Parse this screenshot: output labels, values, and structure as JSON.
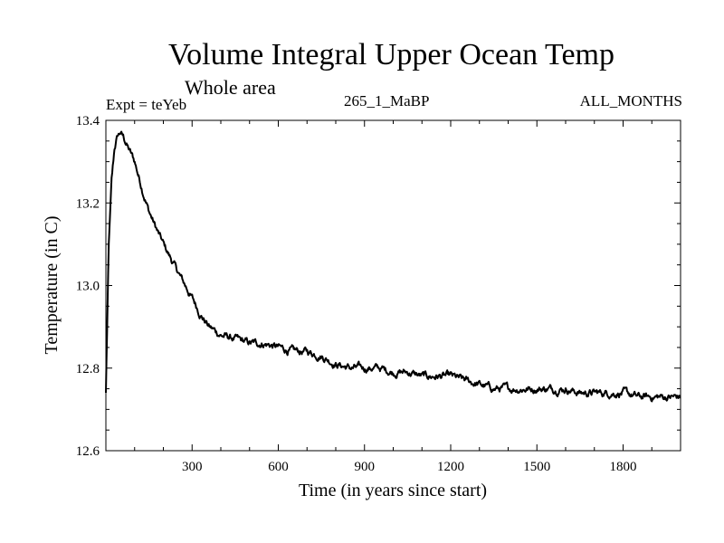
{
  "chart_data": {
    "type": "line",
    "title": "Volume Integral Upper Ocean Temp",
    "subtitle": "Whole area",
    "experiment_label": "Expt = teYeb",
    "center_label": "265_1_MaBP",
    "right_label": "ALL_MONTHS",
    "xlabel": "Time (in years since start)",
    "ylabel": "Temperature (in C)",
    "xlim": [
      0,
      2000
    ],
    "ylim": [
      12.6,
      13.4
    ],
    "xticks": [
      300,
      600,
      900,
      1200,
      1500,
      1800
    ],
    "xtick_labels": [
      "300",
      "600",
      "900",
      "1200",
      "1500",
      "1800"
    ],
    "yticks": [
      12.6,
      12.8,
      13.0,
      13.2,
      13.4
    ],
    "ytick_labels": [
      "12.6",
      "12.8",
      "13.0",
      "13.2",
      "13.4"
    ],
    "series": [
      {
        "name": "Volume integral upper ocean temperature",
        "color": "#000000",
        "x": [
          0,
          5,
          10,
          20,
          30,
          40,
          50,
          60,
          80,
          100,
          120,
          150,
          180,
          200,
          230,
          260,
          300,
          330,
          360,
          400,
          450,
          500,
          550,
          600,
          650,
          700,
          750,
          800,
          850,
          900,
          950,
          1000,
          1050,
          1100,
          1150,
          1200,
          1250,
          1300,
          1350,
          1400,
          1450,
          1500,
          1550,
          1600,
          1650,
          1700,
          1750,
          1800,
          1850,
          1900,
          1950,
          2000
        ],
        "y": [
          12.74,
          12.92,
          13.1,
          13.25,
          13.33,
          13.36,
          13.37,
          13.36,
          13.33,
          13.3,
          13.25,
          13.18,
          13.13,
          13.1,
          13.06,
          13.02,
          12.97,
          12.93,
          12.9,
          12.88,
          12.87,
          12.86,
          12.86,
          12.85,
          12.84,
          12.84,
          12.83,
          12.81,
          12.8,
          12.8,
          12.8,
          12.79,
          12.79,
          12.78,
          12.78,
          12.78,
          12.77,
          12.76,
          12.75,
          12.75,
          12.75,
          12.75,
          12.75,
          12.75,
          12.74,
          12.74,
          12.74,
          12.74,
          12.73,
          12.73,
          12.73,
          12.73
        ]
      }
    ]
  }
}
